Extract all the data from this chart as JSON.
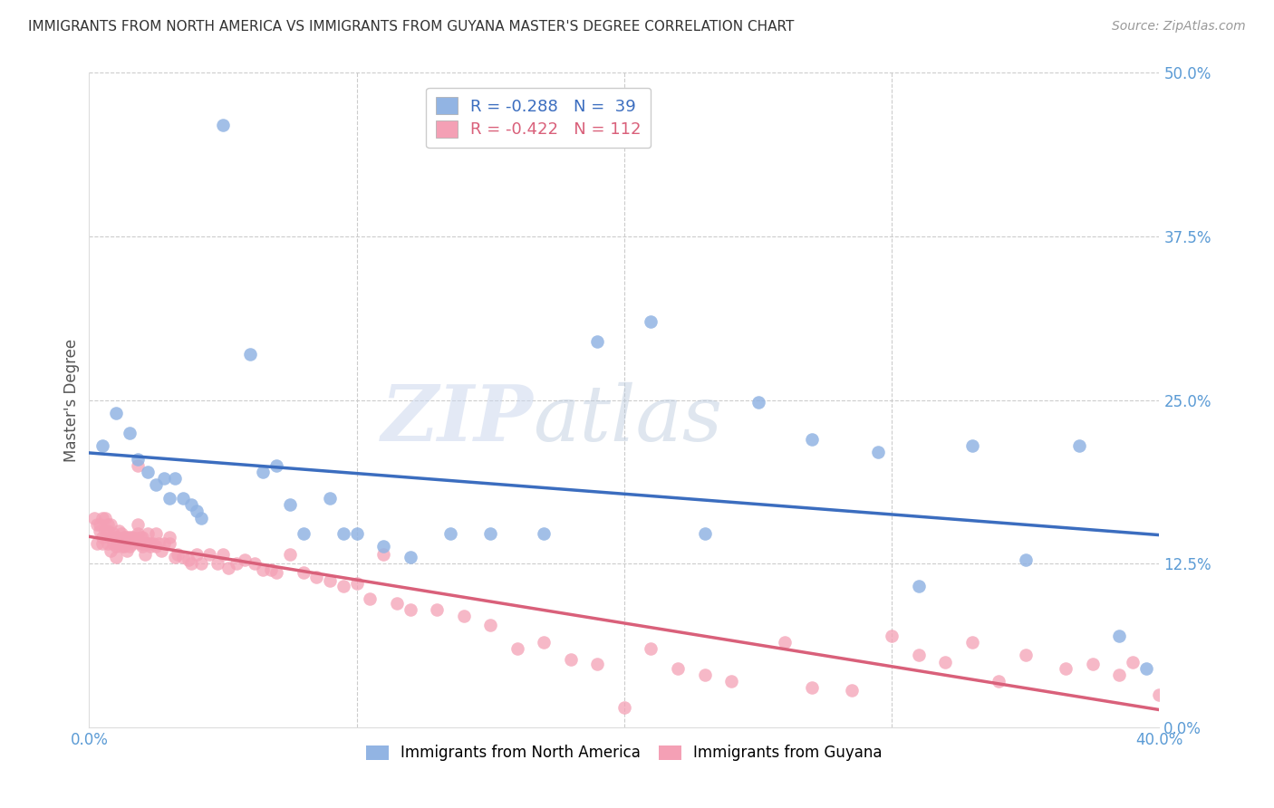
{
  "title": "IMMIGRANTS FROM NORTH AMERICA VS IMMIGRANTS FROM GUYANA MASTER'S DEGREE CORRELATION CHART",
  "source": "Source: ZipAtlas.com",
  "ylabel": "Master's Degree",
  "legend_label1": "Immigrants from North America",
  "legend_label2": "Immigrants from Guyana",
  "r1_text": "R = -0.288   N =  39",
  "r2_text": "R = -0.422   N = 112",
  "color1": "#92b4e3",
  "color2": "#f4a0b5",
  "line_color1": "#3b6dbf",
  "line_color2": "#d9607a",
  "xlim": [
    0.0,
    0.4
  ],
  "ylim": [
    0.0,
    0.5
  ],
  "yticks": [
    0.0,
    0.125,
    0.25,
    0.375,
    0.5
  ],
  "xticks": [
    0.0,
    0.1,
    0.2,
    0.3,
    0.4
  ],
  "ytick_labels_right": [
    "0.0%",
    "12.5%",
    "25.0%",
    "37.5%",
    "50.0%"
  ],
  "grid_color": "#cccccc",
  "background_color": "#ffffff",
  "blue_x": [
    0.005,
    0.01,
    0.015,
    0.018,
    0.022,
    0.025,
    0.028,
    0.03,
    0.032,
    0.035,
    0.038,
    0.04,
    0.042,
    0.05,
    0.06,
    0.065,
    0.07,
    0.075,
    0.08,
    0.09,
    0.095,
    0.1,
    0.11,
    0.12,
    0.135,
    0.15,
    0.17,
    0.19,
    0.21,
    0.23,
    0.25,
    0.27,
    0.295,
    0.31,
    0.33,
    0.35,
    0.37,
    0.385,
    0.395
  ],
  "blue_y": [
    0.215,
    0.24,
    0.225,
    0.205,
    0.195,
    0.185,
    0.19,
    0.175,
    0.19,
    0.175,
    0.17,
    0.165,
    0.16,
    0.46,
    0.285,
    0.195,
    0.2,
    0.17,
    0.148,
    0.175,
    0.148,
    0.148,
    0.138,
    0.13,
    0.148,
    0.148,
    0.148,
    0.295,
    0.31,
    0.148,
    0.248,
    0.22,
    0.21,
    0.108,
    0.215,
    0.128,
    0.215,
    0.07,
    0.045
  ],
  "pink_x": [
    0.002,
    0.003,
    0.003,
    0.004,
    0.004,
    0.005,
    0.005,
    0.005,
    0.006,
    0.006,
    0.007,
    0.007,
    0.007,
    0.008,
    0.008,
    0.008,
    0.009,
    0.009,
    0.01,
    0.01,
    0.01,
    0.011,
    0.011,
    0.012,
    0.012,
    0.012,
    0.013,
    0.013,
    0.014,
    0.014,
    0.015,
    0.015,
    0.016,
    0.016,
    0.017,
    0.017,
    0.018,
    0.018,
    0.018,
    0.019,
    0.019,
    0.02,
    0.02,
    0.02,
    0.021,
    0.021,
    0.022,
    0.022,
    0.023,
    0.023,
    0.024,
    0.025,
    0.025,
    0.026,
    0.027,
    0.028,
    0.03,
    0.03,
    0.032,
    0.033,
    0.035,
    0.037,
    0.038,
    0.04,
    0.042,
    0.045,
    0.048,
    0.05,
    0.052,
    0.055,
    0.058,
    0.062,
    0.065,
    0.068,
    0.07,
    0.075,
    0.08,
    0.085,
    0.09,
    0.095,
    0.1,
    0.105,
    0.11,
    0.115,
    0.12,
    0.13,
    0.14,
    0.15,
    0.16,
    0.17,
    0.18,
    0.19,
    0.2,
    0.21,
    0.22,
    0.23,
    0.24,
    0.26,
    0.27,
    0.285,
    0.3,
    0.31,
    0.32,
    0.33,
    0.34,
    0.35,
    0.365,
    0.375,
    0.385,
    0.39,
    0.4,
    0.41
  ],
  "pink_y": [
    0.16,
    0.14,
    0.155,
    0.155,
    0.15,
    0.16,
    0.145,
    0.14,
    0.16,
    0.15,
    0.155,
    0.15,
    0.14,
    0.155,
    0.145,
    0.135,
    0.148,
    0.14,
    0.145,
    0.138,
    0.13,
    0.15,
    0.14,
    0.148,
    0.142,
    0.138,
    0.145,
    0.138,
    0.145,
    0.135,
    0.145,
    0.138,
    0.145,
    0.14,
    0.142,
    0.145,
    0.2,
    0.155,
    0.148,
    0.14,
    0.145,
    0.14,
    0.145,
    0.138,
    0.14,
    0.132,
    0.148,
    0.14,
    0.14,
    0.138,
    0.14,
    0.148,
    0.138,
    0.14,
    0.135,
    0.14,
    0.14,
    0.145,
    0.13,
    0.132,
    0.13,
    0.128,
    0.125,
    0.132,
    0.125,
    0.132,
    0.125,
    0.132,
    0.122,
    0.125,
    0.128,
    0.125,
    0.12,
    0.12,
    0.118,
    0.132,
    0.118,
    0.115,
    0.112,
    0.108,
    0.11,
    0.098,
    0.132,
    0.095,
    0.09,
    0.09,
    0.085,
    0.078,
    0.06,
    0.065,
    0.052,
    0.048,
    0.015,
    0.06,
    0.045,
    0.04,
    0.035,
    0.065,
    0.03,
    0.028,
    0.07,
    0.055,
    0.05,
    0.065,
    0.035,
    0.055,
    0.045,
    0.048,
    0.04,
    0.05,
    0.025,
    0.018
  ]
}
